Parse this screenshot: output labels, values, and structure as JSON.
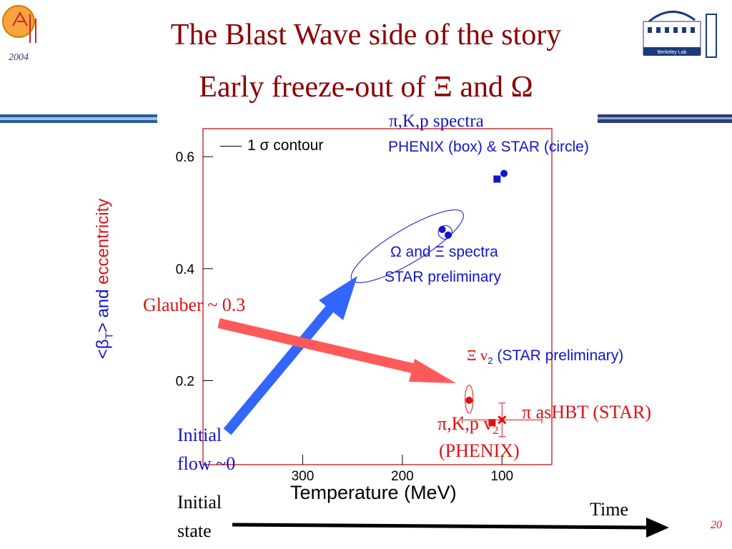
{
  "slide": {
    "title_line1": "The Blast Wave side of the story",
    "title_line2": "Early freeze-out of Ξ and Ω",
    "logo_left_year": "2004",
    "logo_right_text": "Berkeley Lab",
    "page_number": "20"
  },
  "labels": {
    "pikp_spectra": "π,K,p spectra",
    "phenix_star": "PHENIX (box) & STAR (circle)",
    "omega_xi_spectra": "Ω and Ξ spectra",
    "star_prelim": "STAR preliminary",
    "glauber": "Glauber ~ 0.3",
    "xi_v2_prefix": "Ξ v",
    "xi_v2_sub": "2",
    "xi_v2_suffix": " (STAR preliminary)",
    "pikp_v2_prefix": "π,K,p v",
    "pikp_v2_sub": "2",
    "phenix": "(PHENIX)",
    "pi_ashbt": "π asHBT (STAR)",
    "initial_flow_1": "Initial",
    "initial_flow_2": "flow ~0",
    "initial_state_1": "Initial",
    "initial_state_2": "state",
    "time": "Time",
    "contour": "1 σ contour"
  },
  "colors": {
    "title": "#8b0000",
    "blue_marker": "#1414cc",
    "red_marker": "#e01010",
    "blue_arrow": "#3366ff",
    "red_arrow": "#ff5a5a",
    "frame": "#cc3333"
  },
  "chart_data": {
    "type": "scatter",
    "xlabel": "Temperature (MeV)",
    "ylabel_parts": [
      "<β",
      "T",
      "> and ",
      "eccentricity"
    ],
    "x_ticks": [
      300,
      200,
      100
    ],
    "y_ticks": [
      "0.2",
      "0.4",
      "0.6"
    ],
    "x_reversed": true,
    "xlim": [
      400,
      50
    ],
    "ylim": [
      0.05,
      0.65
    ],
    "series": [
      {
        "name": "PHENIX (box)",
        "shape": "square",
        "color": "#1414cc",
        "points": [
          {
            "x": 105,
            "y": 0.56
          }
        ]
      },
      {
        "name": "STAR (circle)",
        "shape": "circle",
        "color": "#1414cc",
        "points": [
          {
            "x": 98,
            "y": 0.57
          }
        ]
      },
      {
        "shape": "circle",
        "color": "#1414cc",
        "points": [
          {
            "x": 160,
            "y": 0.47
          },
          {
            "x": 154,
            "y": 0.46
          }
        ]
      },
      {
        "shape": "circle",
        "color": "#e01010",
        "points": [
          {
            "x": 133,
            "y": 0.165
          }
        ]
      },
      {
        "shape": "square",
        "color": "#e01010",
        "points": [
          {
            "x": 110,
            "y": 0.125
          }
        ]
      },
      {
        "shape": "cross",
        "color": "#e01010",
        "points": [
          {
            "x": 100,
            "y": 0.13
          }
        ]
      }
    ],
    "contours": [
      {
        "cx": 195,
        "cy": 0.44,
        "rx_mev": 65,
        "ry": 0.03,
        "angle": -31
      },
      {
        "cx": 157,
        "cy": 0.465,
        "rx_mev": 7,
        "ry": 0.012,
        "angle": -30
      },
      {
        "cx": 133,
        "cy": 0.167,
        "rx_mev": 4,
        "ry": 0.025,
        "angle": 0
      }
    ],
    "error_bars": [
      {
        "x": 100,
        "y": 0.13,
        "xerr": 40,
        "yerr": 0.03
      }
    ]
  }
}
